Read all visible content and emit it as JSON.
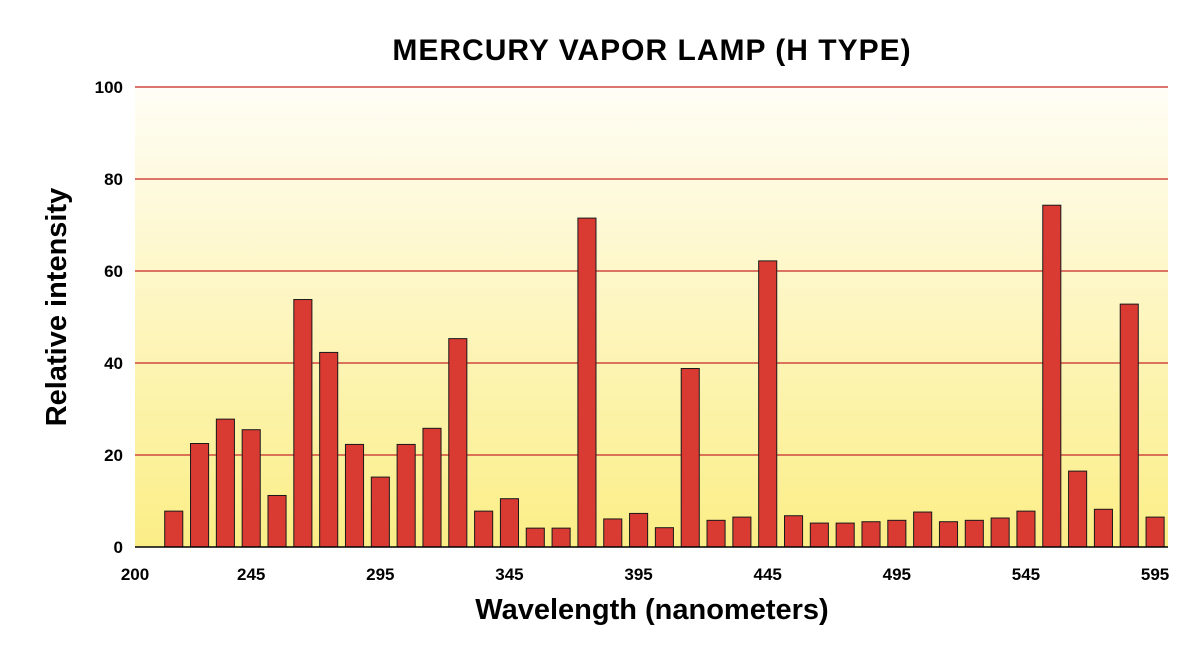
{
  "colors": {
    "bar": "#d93a32",
    "gridline": "#d0483f",
    "bg_top": "#fffdf6",
    "bg_bottom": "#fbee86"
  },
  "chart_data": {
    "type": "bar",
    "title": "MERCURY VAPOR LAMP (H TYPE)",
    "xlabel": "Wavelength (nanometers)",
    "ylabel": "Relative intensity",
    "xlim": [
      200,
      600
    ],
    "ylim": [
      0,
      100
    ],
    "x_ticks": [
      200,
      245,
      295,
      345,
      395,
      445,
      495,
      545,
      595
    ],
    "y_ticks": [
      0,
      20,
      40,
      60,
      80,
      100
    ],
    "grid": true,
    "bar_width": 7,
    "x": [
      215,
      225,
      235,
      245,
      255,
      265,
      275,
      285,
      295,
      305,
      315,
      325,
      335,
      345,
      355,
      365,
      375,
      385,
      395,
      405,
      415,
      425,
      435,
      445,
      455,
      465,
      475,
      485,
      495,
      505,
      515,
      525,
      535,
      545,
      555,
      565,
      575,
      585,
      595
    ],
    "values": [
      7.8,
      22.5,
      27.8,
      25.5,
      11.2,
      53.8,
      42.3,
      22.3,
      15.2,
      22.3,
      25.8,
      45.3,
      7.8,
      10.5,
      4.1,
      4.1,
      71.5,
      6.1,
      7.3,
      4.2,
      38.8,
      5.8,
      6.5,
      62.2,
      6.8,
      5.2,
      5.2,
      5.5,
      5.8,
      7.6,
      5.5,
      5.8,
      6.3,
      7.8,
      74.3,
      16.5,
      8.2,
      52.8,
      6.5
    ]
  }
}
